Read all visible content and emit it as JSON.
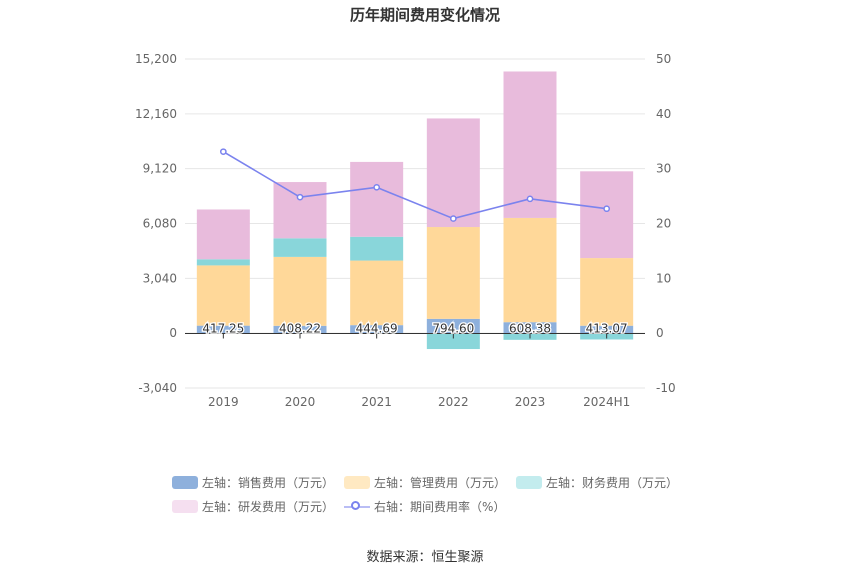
{
  "chart_data": {
    "type": "bar",
    "title": "历年期间费用变化情况",
    "categories": [
      "2019",
      "2020",
      "2021",
      "2022",
      "2023",
      "2024H1"
    ],
    "stacked": true,
    "left_axis": {
      "ticks": [
        "15,200",
        "12,160",
        "9,120",
        "6,080",
        "3,040",
        "0",
        "-3,040"
      ],
      "ylim": [
        -3040,
        15200
      ]
    },
    "right_axis": {
      "ticks": [
        "50",
        "40",
        "30",
        "20",
        "10",
        "0",
        "-10"
      ],
      "ylim": [
        -10,
        50
      ]
    },
    "series": [
      {
        "name": "左轴：销售费用（万元）",
        "axis": "left",
        "color": "#8eb0dc",
        "values": [
          417.25,
          408.22,
          444.69,
          794.6,
          608.38,
          413.07
        ],
        "labels": [
          "417.25",
          "408.22",
          "444.69",
          "794.60",
          "608.38",
          "413.07"
        ]
      },
      {
        "name": "左轴：管理费用（万元）",
        "axis": "left",
        "color": "#ffd899",
        "values": [
          3340,
          3820,
          3580,
          5090,
          5780,
          3750
        ]
      },
      {
        "name": "左轴：财务费用（万元）",
        "axis": "left",
        "color": "#89d6da",
        "values": [
          340,
          1030,
          1320,
          -880,
          -370,
          -350
        ]
      },
      {
        "name": "左轴：研发费用（万元）",
        "axis": "left",
        "color": "#e8bbdc",
        "values": [
          2760,
          3120,
          4150,
          6020,
          8120,
          4810
        ]
      },
      {
        "name": "右轴：期间费用率（%）",
        "axis": "right",
        "type": "line",
        "color": "#7b83ee",
        "values": [
          33.1,
          24.8,
          26.6,
          20.9,
          24.5,
          22.7
        ]
      }
    ],
    "grid": true,
    "legend_position": "bottom"
  },
  "source": "数据来源：恒生聚源"
}
